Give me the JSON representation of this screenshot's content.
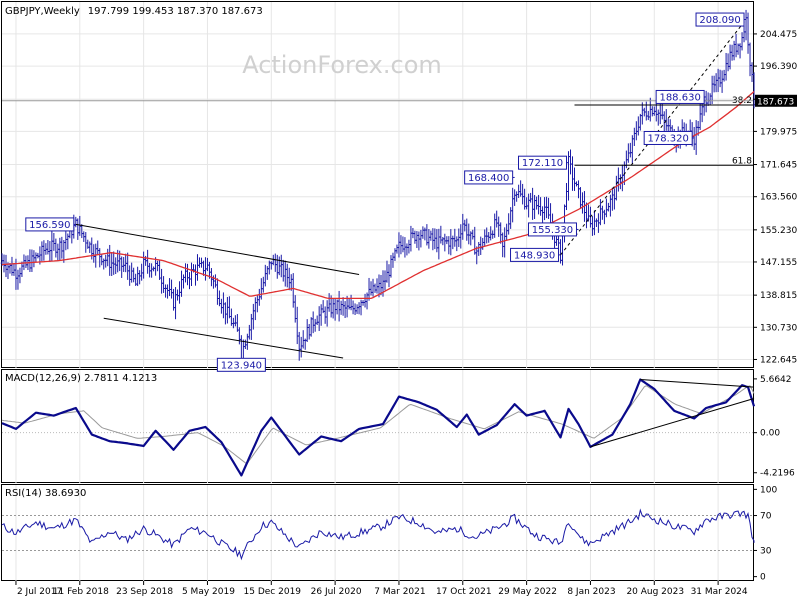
{
  "header": {
    "symbol": "GBPJPY",
    "timeframe": "Weekly",
    "ohlc": "197.799 199.453 187.370 187.673"
  },
  "watermark": "ActionForex.com",
  "colors": {
    "background": "#ffffff",
    "price_bars": "#1a1aa6",
    "moving_average": "#e03030",
    "macd_line": "#0a0a8c",
    "macd_signal": "#9a9a9a",
    "rsi_line": "#1a1aa6",
    "trendlines": "#000000",
    "label_text": "#1a1aa6",
    "grid": "#e6e6e6"
  },
  "chart_data": [
    {
      "id": "price",
      "type": "ohlc",
      "title": "GBPJPY,Weekly",
      "y_axis": {
        "ticks": [
          122.645,
          130.73,
          138.815,
          147.155,
          155.23,
          163.56,
          171.645,
          179.975,
          188.06,
          196.39,
          204.475
        ],
        "tick_labels": [
          "122.645",
          "130.730",
          "138.815",
          "147.155",
          "155.230",
          "163.560",
          "171.645",
          "179.975",
          "",
          "196.390",
          "204.475"
        ],
        "range": [
          120.5,
          212.5
        ],
        "current_price": 187.673,
        "current_price_label": "187.673"
      },
      "x_axis": {
        "tick_labels": [
          "2 Jul 2017",
          "11 Feb 2018",
          "23 Sep 2018",
          "5 May 2019",
          "15 Dec 2019",
          "26 Jul 2020",
          "7 Mar 2021",
          "17 Oct 2021",
          "29 May 2022",
          "8 Jan 2023",
          "20 Aug 2023",
          "31 Mar 2024"
        ],
        "tick_dates": [
          "2017-07-02",
          "2018-02-11",
          "2018-09-23",
          "2019-05-05",
          "2019-12-15",
          "2020-07-26",
          "2021-03-07",
          "2021-10-17",
          "2022-05-29",
          "2023-01-08",
          "2023-08-20",
          "2024-03-31"
        ]
      },
      "price_path": [
        [
          "2017-05-14",
          147.5
        ],
        [
          "2017-07-02",
          144.5
        ],
        [
          "2017-08-20",
          147.0
        ],
        [
          "2017-10-15",
          150.5
        ],
        [
          "2017-12-10",
          151.5
        ],
        [
          "2018-01-28",
          156.59
        ],
        [
          "2018-03-25",
          150.5
        ],
        [
          "2018-05-27",
          147.0
        ],
        [
          "2018-07-22",
          146.0
        ],
        [
          "2018-08-26",
          141.5
        ],
        [
          "2018-09-23",
          146.5
        ],
        [
          "2018-11-04",
          146.0
        ],
        [
          "2019-01-06",
          137.0
        ],
        [
          "2019-02-10",
          143.0
        ],
        [
          "2019-03-31",
          145.5
        ],
        [
          "2019-05-05",
          146.0
        ],
        [
          "2019-06-23",
          137.0
        ],
        [
          "2019-08-25",
          128.5
        ],
        [
          "2019-09-01",
          123.94
        ],
        [
          "2019-10-13",
          135.0
        ],
        [
          "2019-12-15",
          147.5
        ],
        [
          "2020-02-23",
          142.5
        ],
        [
          "2020-03-22",
          126.0
        ],
        [
          "2020-05-17",
          133.0
        ],
        [
          "2020-07-26",
          136.0
        ],
        [
          "2020-09-20",
          135.0
        ],
        [
          "2020-11-08",
          138.5
        ],
        [
          "2021-01-10",
          141.5
        ],
        [
          "2021-03-07",
          151.0
        ],
        [
          "2021-05-16",
          154.5
        ],
        [
          "2021-07-18",
          152.0
        ],
        [
          "2021-09-26",
          152.5
        ],
        [
          "2021-10-17",
          157.0
        ],
        [
          "2021-12-05",
          150.0
        ],
        [
          "2022-02-13",
          157.0
        ],
        [
          "2022-03-06",
          150.5
        ],
        [
          "2022-04-17",
          165.5
        ],
        [
          "2022-05-29",
          162.0
        ],
        [
          "2022-07-31",
          161.0
        ],
        [
          "2022-09-25",
          148.93
        ],
        [
          "2022-10-23",
          172.11
        ],
        [
          "2022-11-20",
          165.5
        ],
        [
          "2023-01-08",
          156.0
        ],
        [
          "2023-03-26",
          163.0
        ],
        [
          "2023-05-28",
          175.0
        ],
        [
          "2023-07-02",
          184.0
        ],
        [
          "2023-08-20",
          186.0
        ],
        [
          "2023-10-29",
          178.5
        ],
        [
          "2023-12-10",
          180.0
        ],
        [
          "2024-01-07",
          178.32
        ],
        [
          "2024-02-18",
          188.63
        ],
        [
          "2024-03-31",
          192.0
        ],
        [
          "2024-05-12",
          199.0
        ],
        [
          "2024-06-23",
          203.5
        ],
        [
          "2024-07-07",
          208.09
        ],
        [
          "2024-08-04",
          187.673
        ]
      ],
      "moving_average": [
        [
          "2017-05-14",
          146.5
        ],
        [
          "2017-12-01",
          147.5
        ],
        [
          "2018-06-01",
          149.5
        ],
        [
          "2018-12-01",
          147.5
        ],
        [
          "2019-06-01",
          143.0
        ],
        [
          "2019-10-01",
          138.5
        ],
        [
          "2020-03-01",
          140.5
        ],
        [
          "2020-07-01",
          138.0
        ],
        [
          "2020-12-01",
          138.0
        ],
        [
          "2021-06-01",
          145.0
        ],
        [
          "2021-12-01",
          150.5
        ],
        [
          "2022-06-01",
          154.0
        ],
        [
          "2022-12-01",
          160.5
        ],
        [
          "2023-06-01",
          168.5
        ],
        [
          "2023-12-01",
          177.5
        ],
        [
          "2024-03-01",
          181.0
        ],
        [
          "2024-06-01",
          186.0
        ],
        [
          "2024-08-04",
          190.0
        ]
      ],
      "annotations": [
        {
          "label": "156.590",
          "date": "2018-01-28",
          "price": 156.59,
          "side": "left"
        },
        {
          "label": "123.940",
          "date": "2019-09-01",
          "price": 123.94,
          "side": "below"
        },
        {
          "label": "168.400",
          "date": "2022-04-17",
          "price": 168.4,
          "side": "left"
        },
        {
          "label": "172.110",
          "date": "2022-10-23",
          "price": 172.11,
          "side": "left"
        },
        {
          "label": "155.330",
          "date": "2022-11-27",
          "price": 155.33,
          "side": "left"
        },
        {
          "label": "148.930",
          "date": "2022-09-25",
          "price": 148.93,
          "side": "left"
        },
        {
          "label": "188.630",
          "date": "2024-02-18",
          "price": 188.63,
          "side": "left"
        },
        {
          "label": "178.320",
          "date": "2024-01-07",
          "price": 178.32,
          "side": "left"
        },
        {
          "label": "208.090",
          "date": "2024-07-07",
          "price": 208.09,
          "side": "left"
        }
      ],
      "fib_levels": [
        {
          "label": "38.2",
          "price": 186.6,
          "from": "2022-11-13"
        },
        {
          "label": "61.8",
          "price": 171.45,
          "from": "2022-11-13"
        }
      ],
      "trendlines": [
        {
          "from": [
            "2018-01-28",
            156.59
          ],
          "to": [
            "2020-10-18",
            144.0
          ]
        },
        {
          "from": [
            "2018-05-06",
            133.0
          ],
          "to": [
            "2020-08-23",
            123.0
          ]
        },
        {
          "from": [
            "2022-09-25",
            148.93
          ],
          "to": [
            "2024-07-07",
            208.09
          ],
          "dashed": true
        }
      ]
    },
    {
      "id": "macd",
      "type": "line",
      "title": "MACD(12,26,9) 2.7811 4.1213",
      "y_axis": {
        "ticks": [
          5.6642,
          0.0,
          -4.2196
        ],
        "tick_labels": [
          "5.6642",
          "0.00",
          "-4.2196"
        ],
        "range": [
          -5.3,
          6.6
        ]
      },
      "series": [
        {
          "role": "macd",
          "values": [
            [
              "2017-05-14",
              1.0
            ],
            [
              "2017-07-02",
              0.4
            ],
            [
              "2017-09-10",
              2.1
            ],
            [
              "2017-11-12",
              1.8
            ],
            [
              "2018-01-28",
              2.6
            ],
            [
              "2018-03-25",
              -0.2
            ],
            [
              "2018-05-27",
              -0.9
            ],
            [
              "2018-07-22",
              -1.1
            ],
            [
              "2018-09-23",
              -1.4
            ],
            [
              "2018-11-04",
              0.2
            ],
            [
              "2019-01-06",
              -1.8
            ],
            [
              "2019-03-03",
              0.2
            ],
            [
              "2019-04-28",
              0.6
            ],
            [
              "2019-06-23",
              -1.0
            ],
            [
              "2019-09-01",
              -4.5
            ],
            [
              "2019-11-10",
              0.2
            ],
            [
              "2019-12-15",
              1.6
            ],
            [
              "2020-03-22",
              -2.3
            ],
            [
              "2020-06-07",
              -0.4
            ],
            [
              "2020-08-16",
              -0.9
            ],
            [
              "2020-10-18",
              0.4
            ],
            [
              "2021-01-10",
              0.9
            ],
            [
              "2021-03-07",
              3.8
            ],
            [
              "2021-05-16",
              3.2
            ],
            [
              "2021-07-18",
              2.4
            ],
            [
              "2021-09-26",
              0.6
            ],
            [
              "2021-10-31",
              1.9
            ],
            [
              "2021-12-12",
              -0.2
            ],
            [
              "2022-02-13",
              0.8
            ],
            [
              "2022-04-17",
              3.0
            ],
            [
              "2022-05-29",
              1.8
            ],
            [
              "2022-07-31",
              2.3
            ],
            [
              "2022-09-25",
              -0.5
            ],
            [
              "2022-10-23",
              2.5
            ],
            [
              "2022-11-27",
              0.9
            ],
            [
              "2023-01-08",
              -1.5
            ],
            [
              "2023-03-26",
              -0.2
            ],
            [
              "2023-05-28",
              3.0
            ],
            [
              "2023-07-02",
              5.6
            ],
            [
              "2023-08-20",
              4.6
            ],
            [
              "2023-10-29",
              2.3
            ],
            [
              "2024-01-07",
              1.5
            ],
            [
              "2024-02-18",
              2.6
            ],
            [
              "2024-04-28",
              3.2
            ],
            [
              "2024-06-23",
              5.0
            ],
            [
              "2024-07-14",
              4.8
            ],
            [
              "2024-08-04",
              2.78
            ]
          ]
        },
        {
          "role": "signal",
          "values": [
            [
              "2017-05-14",
              1.3
            ],
            [
              "2017-08-01",
              1.0
            ],
            [
              "2017-12-01",
              2.0
            ],
            [
              "2018-02-25",
              2.3
            ],
            [
              "2018-05-01",
              0.5
            ],
            [
              "2018-09-01",
              -0.6
            ],
            [
              "2018-12-01",
              -0.4
            ],
            [
              "2019-04-01",
              0.0
            ],
            [
              "2019-07-01",
              -1.4
            ],
            [
              "2019-09-20",
              -3.3
            ],
            [
              "2019-12-20",
              0.5
            ],
            [
              "2020-04-15",
              -1.3
            ],
            [
              "2020-08-01",
              -0.6
            ],
            [
              "2021-01-01",
              0.5
            ],
            [
              "2021-04-15",
              3.0
            ],
            [
              "2021-09-01",
              1.5
            ],
            [
              "2022-01-01",
              0.4
            ],
            [
              "2022-05-01",
              2.2
            ],
            [
              "2022-10-01",
              0.9
            ],
            [
              "2023-01-20",
              -0.6
            ],
            [
              "2023-05-01",
              1.6
            ],
            [
              "2023-07-20",
              5.0
            ],
            [
              "2023-11-01",
              3.0
            ],
            [
              "2024-02-01",
              2.0
            ],
            [
              "2024-06-01",
              4.0
            ],
            [
              "2024-07-20",
              5.0
            ],
            [
              "2024-08-04",
              4.12
            ]
          ]
        }
      ],
      "trendlines": [
        {
          "from": [
            "2023-01-08",
            -1.5
          ],
          "to": [
            "2024-08-04",
            3.6
          ]
        },
        {
          "from": [
            "2023-07-02",
            5.6
          ],
          "to": [
            "2024-08-04",
            4.8
          ]
        }
      ]
    },
    {
      "id": "rsi",
      "type": "line",
      "title": "RSI(14) 38.6930",
      "y_axis": {
        "ticks": [
          100,
          70,
          30,
          0
        ],
        "tick_labels": [
          "100",
          "70",
          "30",
          "0"
        ],
        "levels": [
          70,
          30
        ],
        "range": [
          -5,
          105
        ]
      },
      "series": [
        {
          "role": "rsi",
          "values": [
            [
              "2017-05-14",
              58
            ],
            [
              "2017-07-02",
              50
            ],
            [
              "2017-09-10",
              62
            ],
            [
              "2017-11-12",
              55
            ],
            [
              "2018-01-28",
              65
            ],
            [
              "2018-03-25",
              38
            ],
            [
              "2018-05-27",
              52
            ],
            [
              "2018-07-22",
              42
            ],
            [
              "2018-09-23",
              55
            ],
            [
              "2018-11-04",
              48
            ],
            [
              "2019-01-06",
              36
            ],
            [
              "2019-03-03",
              55
            ],
            [
              "2019-05-05",
              50
            ],
            [
              "2019-06-23",
              38
            ],
            [
              "2019-09-01",
              25
            ],
            [
              "2019-11-10",
              58
            ],
            [
              "2019-12-15",
              62
            ],
            [
              "2020-03-22",
              33
            ],
            [
              "2020-06-07",
              52
            ],
            [
              "2020-08-16",
              45
            ],
            [
              "2020-10-18",
              50
            ],
            [
              "2021-01-10",
              58
            ],
            [
              "2021-03-07",
              68
            ],
            [
              "2021-05-16",
              62
            ],
            [
              "2021-07-18",
              50
            ],
            [
              "2021-09-26",
              55
            ],
            [
              "2021-11-28",
              45
            ],
            [
              "2022-02-13",
              55
            ],
            [
              "2022-04-17",
              67
            ],
            [
              "2022-06-26",
              48
            ],
            [
              "2022-09-25",
              38
            ],
            [
              "2022-10-23",
              65
            ],
            [
              "2022-12-11",
              42
            ],
            [
              "2023-01-08",
              38
            ],
            [
              "2023-03-26",
              52
            ],
            [
              "2023-05-28",
              63
            ],
            [
              "2023-07-02",
              72
            ],
            [
              "2023-08-20",
              66
            ],
            [
              "2023-10-29",
              58
            ],
            [
              "2024-01-07",
              52
            ],
            [
              "2024-02-18",
              65
            ],
            [
              "2024-04-28",
              70
            ],
            [
              "2024-06-23",
              73
            ],
            [
              "2024-07-14",
              70
            ],
            [
              "2024-08-04",
              38.69
            ]
          ]
        }
      ]
    }
  ]
}
